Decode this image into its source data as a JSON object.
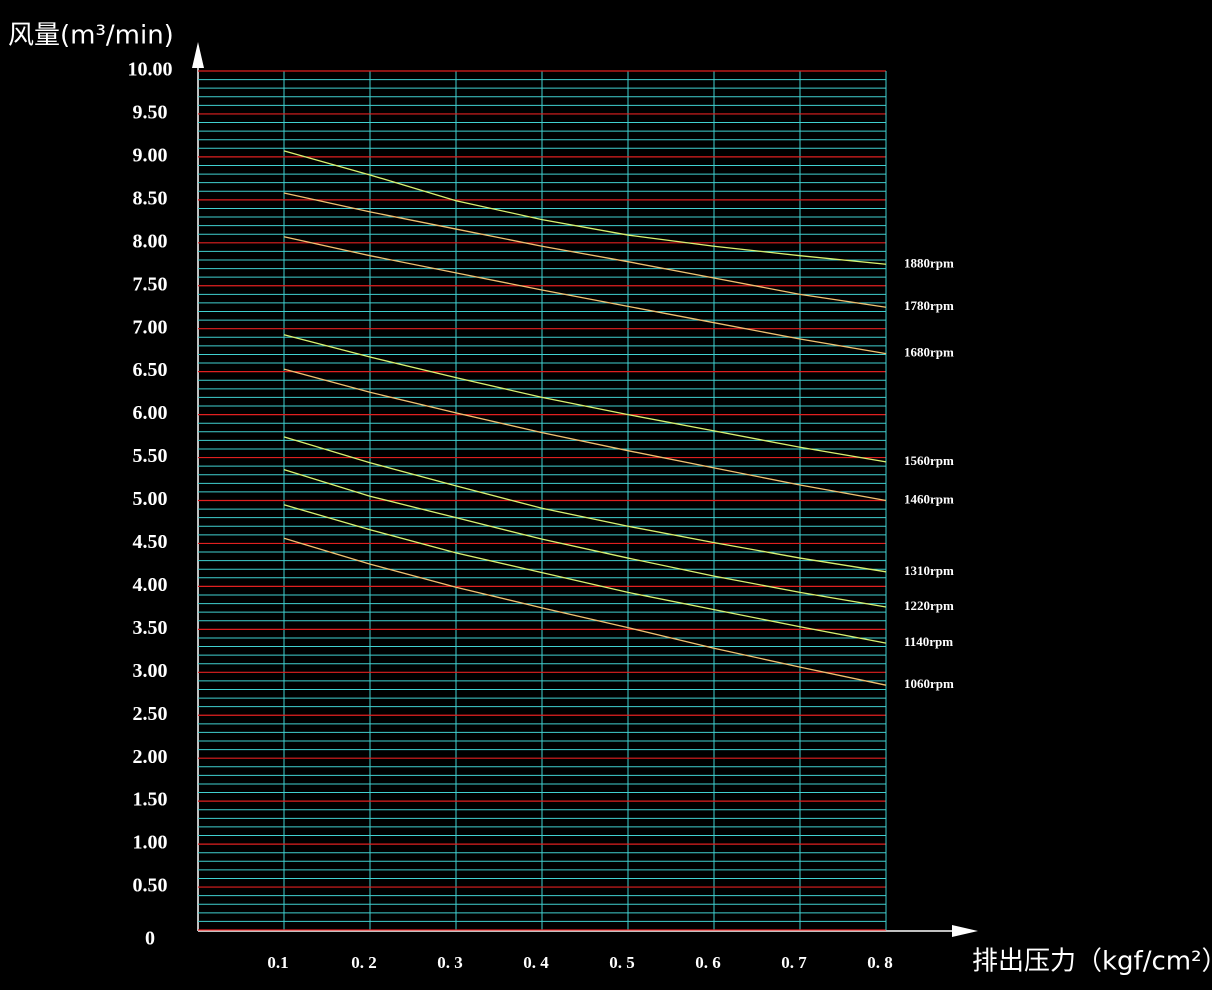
{
  "chart_data": {
    "type": "line",
    "y_label": "风量(m³/min)",
    "x_label": "排出压力（kgf/cm²）",
    "x": [
      0.1,
      0.2,
      0.3,
      0.4,
      0.5,
      0.6,
      0.7,
      0.8
    ],
    "xlim": [
      0,
      0.8
    ],
    "xticks": [
      0.1,
      {
        "value": 0.2,
        "label": "0. 2"
      },
      {
        "value": 0.3,
        "label": "0. 3"
      },
      {
        "value": 0.4,
        "label": "0. 4"
      },
      {
        "value": 0.5,
        "label": "0. 5"
      },
      {
        "value": 0.6,
        "label": "0. 6"
      },
      {
        "value": 0.7,
        "label": "0. 7"
      },
      {
        "value": 0.8,
        "label": "0. 8"
      }
    ],
    "ylim": [
      0,
      10
    ],
    "yticks": [
      0,
      {
        "value": 0.5,
        "label": "0.50"
      },
      {
        "value": 1,
        "label": "1.00"
      },
      {
        "value": 1.5,
        "label": "1.50"
      },
      {
        "value": 2,
        "label": "2.00"
      },
      {
        "value": 2.5,
        "label": "2.50"
      },
      {
        "value": 3,
        "label": "3.00"
      },
      {
        "value": 3.5,
        "label": "3.50"
      },
      {
        "value": 4,
        "label": "4.00"
      },
      {
        "value": 4.5,
        "label": "4.50"
      },
      {
        "value": 5,
        "label": "5.00"
      },
      {
        "value": 5.5,
        "label": "5.50"
      },
      {
        "value": 6,
        "label": "6.00"
      },
      {
        "value": 6.5,
        "label": "6.50"
      },
      {
        "value": 7,
        "label": "7.00"
      },
      {
        "value": 7.5,
        "label": "7.50"
      },
      {
        "value": 8,
        "label": "8.00"
      },
      {
        "value": 8.5,
        "label": "8.50"
      },
      {
        "value": 9,
        "label": "9.00"
      },
      {
        "value": 9.5,
        "label": "9.50"
      },
      {
        "value": 10,
        "label": "10.00"
      }
    ],
    "grid": true,
    "minor_grid": true,
    "grid_color": "#e02020",
    "minor_grid_color": "#40d0d0",
    "series": [
      {
        "name": "1880rpm",
        "color": "#d8f070",
        "values": [
          9.07,
          8.79,
          8.49,
          8.27,
          8.09,
          7.96,
          7.85,
          7.75
        ]
      },
      {
        "name": "1780rpm",
        "color": "#f0c070",
        "values": [
          8.58,
          8.36,
          8.16,
          7.96,
          7.78,
          7.59,
          7.4,
          7.25
        ]
      },
      {
        "name": "1680rpm",
        "color": "#f0c070",
        "values": [
          8.07,
          7.85,
          7.65,
          7.45,
          7.26,
          7.07,
          6.88,
          6.71
        ]
      },
      {
        "name": "1560rpm",
        "color": "#d8f070",
        "values": [
          6.93,
          6.67,
          6.43,
          6.2,
          6.0,
          5.81,
          5.62,
          5.45
        ]
      },
      {
        "name": "1460rpm",
        "color": "#f0c070",
        "values": [
          6.53,
          6.26,
          6.02,
          5.79,
          5.58,
          5.38,
          5.18,
          5.0
        ]
      },
      {
        "name": "1310rpm",
        "color": "#d8f070",
        "values": [
          5.74,
          5.44,
          5.17,
          4.91,
          4.7,
          4.51,
          4.33,
          4.17
        ]
      },
      {
        "name": "1220rpm",
        "color": "#d8f070",
        "values": [
          5.36,
          5.05,
          4.8,
          4.55,
          4.33,
          4.12,
          3.93,
          3.76
        ]
      },
      {
        "name": "1140rpm",
        "color": "#d8f070",
        "values": [
          4.95,
          4.66,
          4.39,
          4.16,
          3.93,
          3.73,
          3.53,
          3.34
        ]
      },
      {
        "name": "1060rpm",
        "color": "#f0c070",
        "values": [
          4.56,
          4.26,
          3.99,
          3.75,
          3.52,
          3.28,
          3.06,
          2.85
        ]
      }
    ]
  }
}
